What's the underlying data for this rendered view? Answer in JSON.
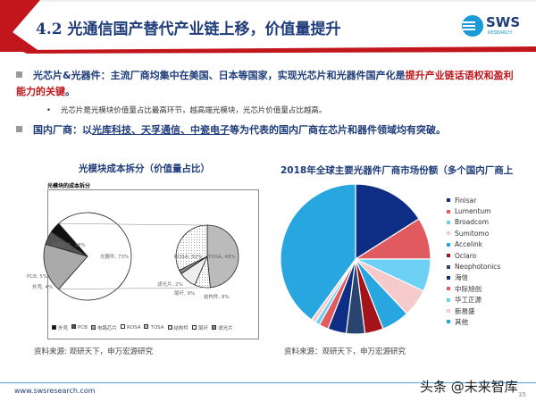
{
  "header": {
    "title": "4.2 光通信国产替代产业链上移，价值量提升",
    "logo_text": "SWS",
    "logo_sub": "RESEARCH"
  },
  "bullets": [
    {
      "prefix": "光芯片&光器件：主流厂商均集中在美国、日本等国家，实现光芯片和光器件国产化是",
      "highlight": "提升产业链话语权和盈利能力的关键",
      "suffix": "。"
    },
    {
      "sub": "光芯片是光模块价值量占比最高环节，越高端光模块，光芯片价值量占比越高。"
    },
    {
      "prefix": "国内厂商：以",
      "underline": "光库科技、天孚通信、中瓷电子",
      "suffix": "等为代表的国内厂商在芯片和器件领域均有突破。"
    }
  ],
  "chart_data": [
    {
      "type": "pie",
      "title": "光模块成本拆分（价值量占比）",
      "subtitle": "光模块的成本拆分",
      "categories": [
        "光器件",
        "电路芯片",
        "PCB",
        "外壳"
      ],
      "values": [
        73,
        18,
        5,
        4
      ],
      "labels": [
        "光器件, 73%",
        "电路芯片, 18%",
        "PCB, 5%",
        "外壳, 4%"
      ],
      "breakdown_of": "光器件",
      "sub_categories": [
        "TOSA",
        "结构件",
        "尾纤",
        "滤光片",
        "ROSA"
      ],
      "sub_values": [
        48,
        8,
        9,
        2,
        32
      ],
      "sub_labels": [
        "TOSA, 48%",
        "结构件, 8%",
        "尾纤, 9%",
        "滤光片, 2%",
        "ROSA, 32%"
      ],
      "legend": [
        "外壳",
        "PCB",
        "电路芯片",
        "ROSA",
        "TOSA",
        "结构件",
        "尾纤",
        "滤光片"
      ],
      "source": "资料来源: 观研天下，申万宏源研究"
    },
    {
      "type": "pie",
      "title": "2018年全球主要光器件厂商市场份额（多个国内厂商上榜）",
      "categories": [
        "Finisar",
        "Lumentum",
        "Broadcom",
        "Sumitomo",
        "Accelink",
        "Oclaro",
        "Neophotonics",
        "海信",
        "中际旭创",
        "华工正源",
        "新易盛",
        "其他"
      ],
      "values": [
        16,
        9,
        7,
        6,
        6,
        4,
        4,
        4,
        2,
        1,
        1,
        40
      ],
      "colors": [
        "#0d2e84",
        "#e05a5f",
        "#6fd0f5",
        "#f6c9cb",
        "#27a6e0",
        "#a3141a",
        "#2a4470",
        "#0d2e84",
        "#e05a5f",
        "#6fd0f5",
        "#f6c9cb",
        "#27a6e0"
      ],
      "legend": "right",
      "source": "资料来源：观研天下，申万宏源研究"
    }
  ],
  "footer": {
    "url": "www.swsresearch.com",
    "watermark": "头条 @未来智库",
    "page": "35"
  }
}
